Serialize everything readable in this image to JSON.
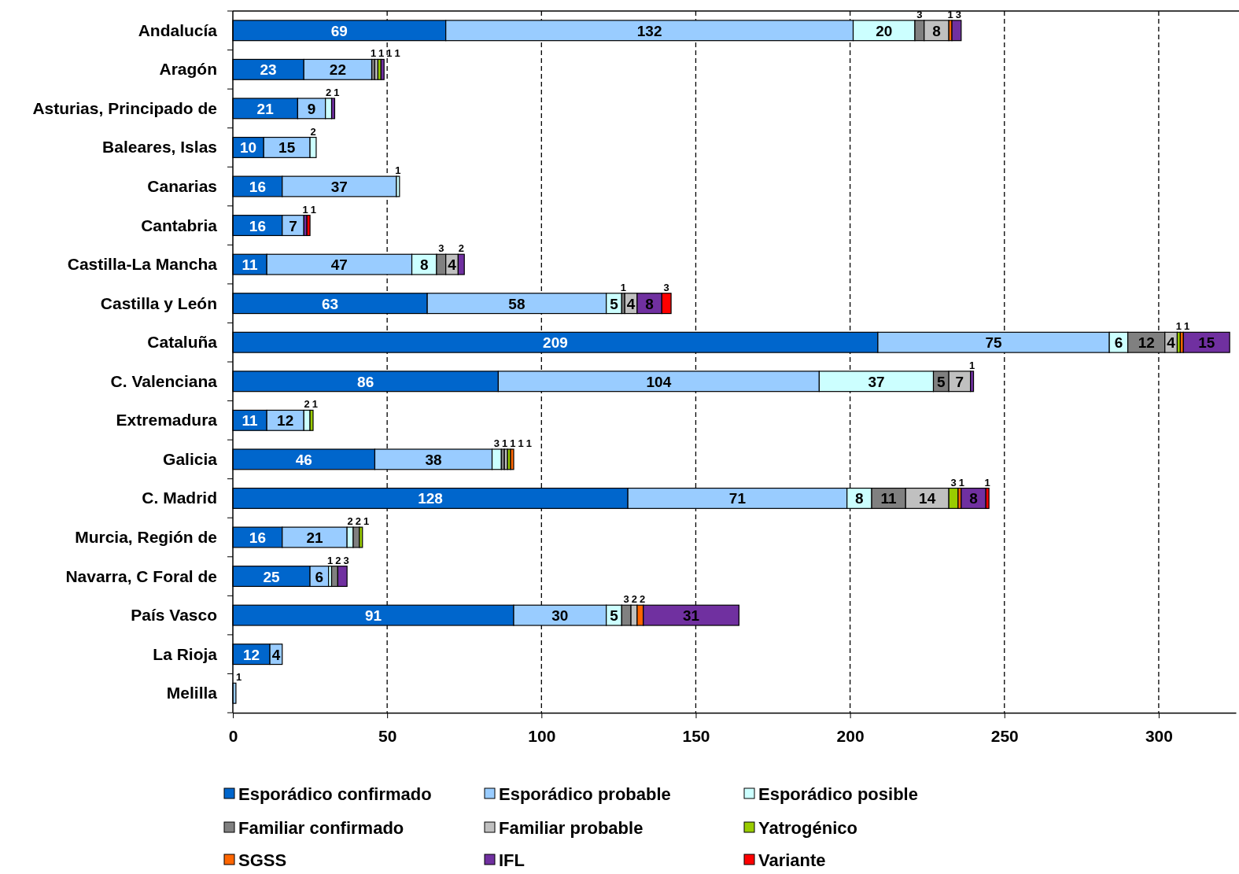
{
  "chart_data": {
    "type": "bar",
    "orientation": "horizontal",
    "stacked": true,
    "data_labels": true,
    "grid": "x",
    "legend": "bottom",
    "categories": [
      "Andalucía",
      "Aragón",
      "Asturias, Principado de",
      "Baleares, Islas",
      "Canarias",
      "Cantabria",
      "Castilla-La Mancha",
      "Castilla y León",
      "Cataluña",
      "C. Valenciana",
      "Extremadura",
      "Galicia",
      "C. Madrid",
      "Murcia, Región de",
      "Navarra, C Foral de",
      "País Vasco",
      "La Rioja",
      "Melilla"
    ],
    "xlim": [
      0,
      325
    ],
    "xticks": [
      0,
      50,
      100,
      150,
      200,
      250,
      300
    ],
    "series": [
      {
        "name": "Esporádico confirmado",
        "color": "#0066cc",
        "values": [
          69,
          23,
          21,
          10,
          16,
          16,
          11,
          63,
          209,
          86,
          11,
          46,
          128,
          16,
          25,
          91,
          12,
          null
        ]
      },
      {
        "name": "Esporádico probable",
        "color": "#99ccff",
        "values": [
          132,
          22,
          9,
          15,
          37,
          7,
          47,
          58,
          75,
          104,
          12,
          38,
          71,
          21,
          6,
          30,
          4,
          1
        ]
      },
      {
        "name": "Esporádico posible",
        "color": "#ccffff",
        "values": [
          20,
          null,
          2,
          2,
          1,
          null,
          8,
          5,
          6,
          37,
          2,
          3,
          8,
          2,
          1,
          5,
          null,
          null
        ]
      },
      {
        "name": "Familiar confirmado",
        "color": "#808080",
        "values": [
          3,
          1,
          null,
          null,
          null,
          null,
          3,
          1,
          12,
          5,
          null,
          1,
          11,
          2,
          2,
          3,
          null,
          null
        ]
      },
      {
        "name": "Familiar probable",
        "color": "#c0c0c0",
        "values": [
          8,
          1,
          null,
          null,
          null,
          null,
          4,
          4,
          4,
          7,
          null,
          1,
          14,
          null,
          null,
          2,
          null,
          null
        ]
      },
      {
        "name": "Yatrogénico",
        "color": "#99cc00",
        "values": [
          null,
          1,
          null,
          null,
          null,
          null,
          null,
          null,
          1,
          null,
          1,
          1,
          3,
          1,
          null,
          null,
          null,
          null
        ]
      },
      {
        "name": "SGSS",
        "color": "#ff6600",
        "values": [
          1,
          null,
          null,
          null,
          null,
          null,
          null,
          null,
          1,
          null,
          null,
          1,
          1,
          null,
          null,
          2,
          null,
          null
        ]
      },
      {
        "name": "IFL",
        "color": "#7030a0",
        "values": [
          3,
          1,
          1,
          null,
          null,
          1,
          2,
          8,
          15,
          1,
          null,
          null,
          8,
          null,
          3,
          31,
          null,
          null
        ]
      },
      {
        "name": "Variante",
        "color": "#ff0000",
        "values": [
          null,
          null,
          null,
          null,
          null,
          1,
          null,
          3,
          null,
          null,
          null,
          null,
          1,
          null,
          null,
          null,
          null,
          null
        ]
      }
    ]
  }
}
